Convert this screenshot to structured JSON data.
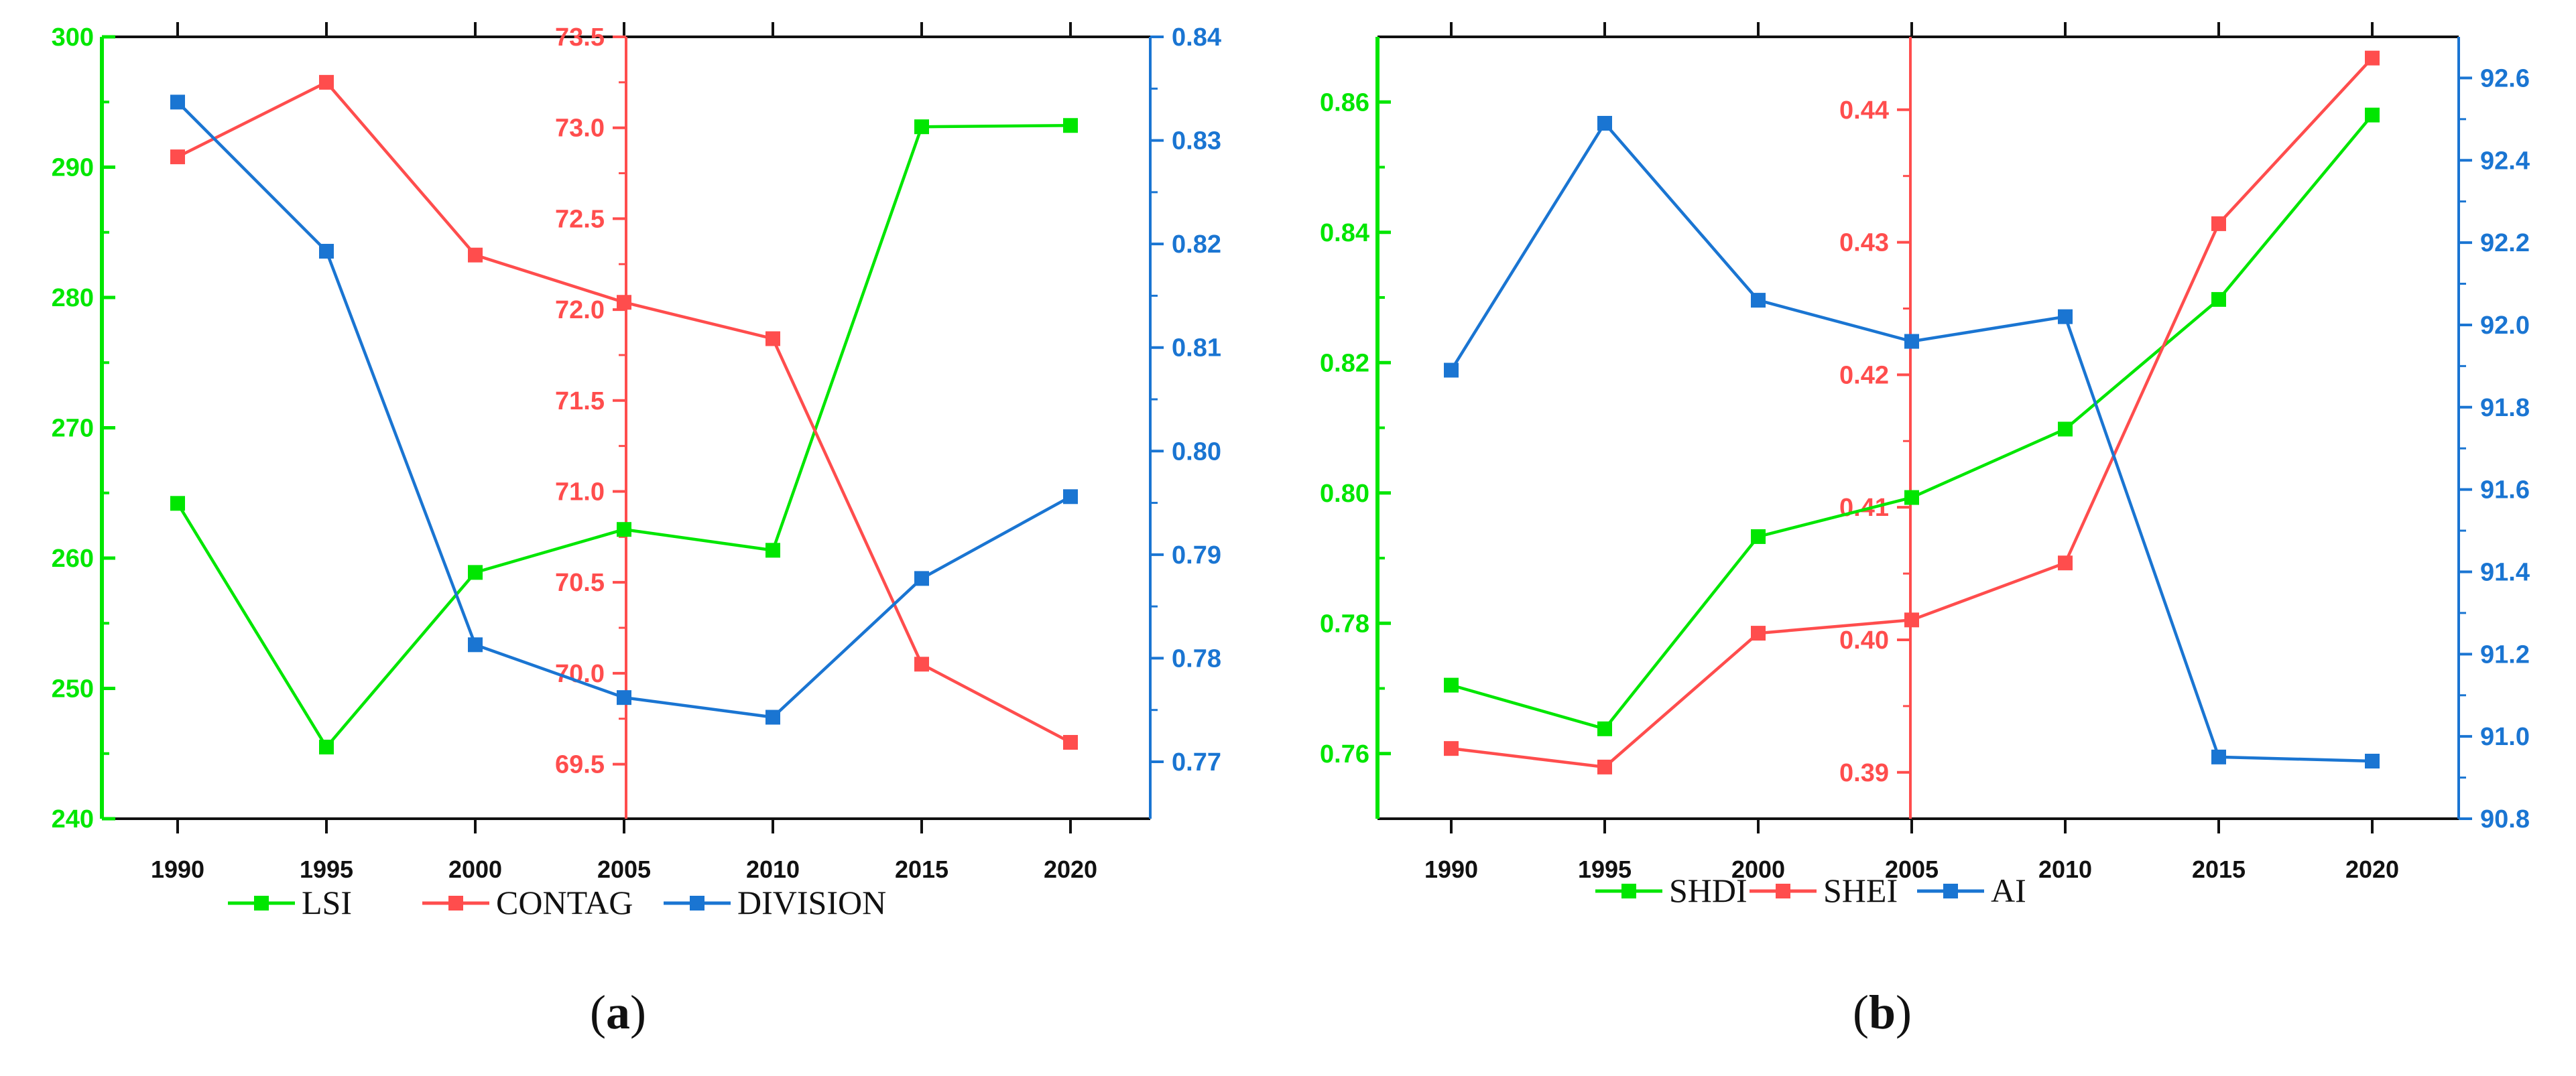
{
  "chart_data": [
    {
      "type": "line",
      "label": "a",
      "x": [
        "1990",
        "1995",
        "2000",
        "2005",
        "2010",
        "2015",
        "2020"
      ],
      "axes": {
        "left": {
          "ylim": [
            240,
            300
          ],
          "ticks": [
            "240",
            "250",
            "260",
            "270",
            "280",
            "290",
            "300"
          ],
          "color": "#00e600"
        },
        "middle": {
          "ylim": [
            69.2,
            73.5
          ],
          "ticks": [
            "69.5",
            "70.0",
            "70.5",
            "71.0",
            "71.5",
            "72.0",
            "72.5",
            "73.0",
            "73.5"
          ],
          "color": "#ff4d4d"
        },
        "right": {
          "ylim": [
            0.7645,
            0.84
          ],
          "ticks": [
            "0.77",
            "0.78",
            "0.79",
            "0.80",
            "0.81",
            "0.82",
            "0.83",
            "0.84"
          ],
          "color": "#1a75d2"
        }
      },
      "series": [
        {
          "name": "LSI",
          "axis": "left",
          "color": "#00e600",
          "values": [
            264.2,
            245.5,
            258.9,
            262.2,
            260.6,
            293.1,
            293.2
          ]
        },
        {
          "name": "CONTAG",
          "axis": "middle",
          "color": "#ff4d4d",
          "values": [
            72.84,
            73.25,
            72.3,
            72.04,
            71.84,
            70.05,
            69.62
          ]
        },
        {
          "name": "DIVISION",
          "axis": "right",
          "color": "#1a75d2",
          "values": [
            0.8337,
            0.8193,
            0.7813,
            0.7762,
            0.7743,
            0.7877,
            0.7956
          ]
        }
      ],
      "legend": [
        "LSI",
        "CONTAG",
        "DIVISION"
      ],
      "caption": "(a)"
    },
    {
      "type": "line",
      "label": "b",
      "x": [
        "1990",
        "1995",
        "2000",
        "2005",
        "2010",
        "2015",
        "2020"
      ],
      "axes": {
        "left": {
          "ylim": [
            0.75,
            0.87
          ],
          "ticks": [
            "0.76",
            "0.78",
            "0.80",
            "0.82",
            "0.84",
            "0.86"
          ],
          "color": "#00e600"
        },
        "middle": {
          "ylim": [
            0.3865,
            0.4455
          ],
          "ticks": [
            "0.39",
            "0.40",
            "0.41",
            "0.42",
            "0.43",
            "0.44"
          ],
          "color": "#ff4d4d"
        },
        "right": {
          "ylim": [
            90.8,
            92.7
          ],
          "ticks": [
            "90.8",
            "91.0",
            "91.2",
            "91.4",
            "91.6",
            "91.8",
            "92.0",
            "92.2",
            "92.4",
            "92.6"
          ],
          "color": "#1a75d2"
        }
      },
      "series": [
        {
          "name": "SHDI",
          "axis": "left",
          "color": "#00e600",
          "values": [
            0.7705,
            0.7638,
            0.7933,
            0.7993,
            0.8098,
            0.8297,
            0.858
          ]
        },
        {
          "name": "SHEI",
          "axis": "middle",
          "color": "#ff4d4d",
          "values": [
            0.3918,
            0.3904,
            0.4005,
            0.4015,
            0.4058,
            0.4314,
            0.4439
          ]
        },
        {
          "name": "AI",
          "axis": "right",
          "color": "#1a75d2",
          "values": [
            91.89,
            92.49,
            92.06,
            91.96,
            92.02,
            90.95,
            90.94
          ]
        }
      ],
      "legend": [
        "SHDI",
        "SHEI",
        "AI"
      ],
      "caption": "(b)"
    }
  ]
}
